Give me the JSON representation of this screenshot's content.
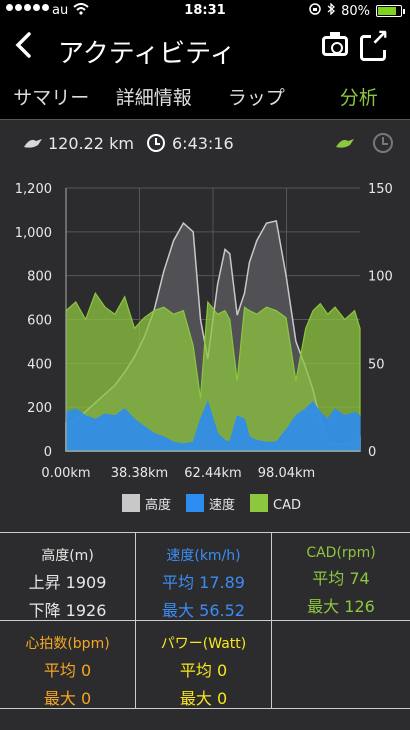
{
  "status": {
    "carrier": "au",
    "time": "18:31",
    "battery": "80%",
    "battery_level": 0.8
  },
  "header": {
    "title": "アクティビティ",
    "back_icon": "back-arrow-icon",
    "camera_icon": "camera-icon",
    "share_icon": "share-icon"
  },
  "tabs": [
    {
      "label": "サマリー",
      "active": false
    },
    {
      "label": "詳細情報",
      "active": false
    },
    {
      "label": "ラップ",
      "active": false
    },
    {
      "label": "分析",
      "active": true
    }
  ],
  "summary": {
    "distance": "120.22 km",
    "duration": "6:43:16"
  },
  "chart_data": {
    "type": "line",
    "x_ticks": [
      "0.00km",
      "38.38km",
      "62.44km",
      "98.04km"
    ],
    "y_left_ticks": [
      "0",
      "200",
      "400",
      "600",
      "800",
      "1,000",
      "1,200"
    ],
    "y_left_lim": [
      0,
      1200
    ],
    "y_right_ticks": [
      "0",
      "50",
      "100",
      "150"
    ],
    "y_right_lim": [
      0,
      150
    ],
    "x_km_range": [
      0,
      120.22
    ],
    "legend": [
      {
        "label": "高度",
        "color": "#c8c8c8"
      },
      {
        "label": "速度",
        "color": "#2d8cf0"
      },
      {
        "label": "CAD",
        "color": "#8dc63f"
      }
    ],
    "series": [
      {
        "name": "高度",
        "axis": "left",
        "x": [
          0,
          4,
          8,
          12,
          16,
          20,
          24,
          28,
          32,
          36,
          40,
          44,
          48,
          52,
          55,
          58,
          62,
          65,
          67,
          70,
          73,
          75,
          78,
          82,
          86,
          90,
          94,
          98,
          101,
          104,
          107,
          110,
          114,
          118,
          120.22
        ],
        "values": [
          130,
          140,
          180,
          220,
          260,
          300,
          360,
          430,
          520,
          640,
          820,
          960,
          1040,
          1000,
          600,
          420,
          760,
          920,
          900,
          620,
          720,
          860,
          960,
          1040,
          1050,
          800,
          500,
          380,
          280,
          140,
          40,
          30,
          30,
          40,
          60
        ]
      },
      {
        "name": "速度",
        "axis": "right",
        "x": [
          0,
          4,
          8,
          12,
          16,
          20,
          24,
          28,
          32,
          36,
          40,
          44,
          48,
          52,
          55,
          58,
          62,
          65,
          67,
          70,
          73,
          75,
          78,
          82,
          86,
          90,
          94,
          98,
          101,
          104,
          107,
          110,
          114,
          118,
          120.22
        ],
        "values": [
          22,
          24,
          20,
          18,
          21,
          20,
          24,
          18,
          14,
          10,
          8,
          5,
          4,
          5,
          18,
          28,
          10,
          6,
          5,
          20,
          18,
          8,
          6,
          5,
          5,
          12,
          20,
          24,
          28,
          22,
          18,
          24,
          20,
          22,
          20
        ]
      },
      {
        "name": "CAD",
        "axis": "right",
        "x": [
          0,
          4,
          8,
          12,
          16,
          20,
          24,
          28,
          32,
          36,
          40,
          44,
          48,
          52,
          55,
          58,
          62,
          65,
          67,
          70,
          73,
          75,
          78,
          82,
          86,
          90,
          94,
          98,
          101,
          104,
          107,
          110,
          114,
          118,
          120.22
        ],
        "values": [
          80,
          85,
          75,
          90,
          82,
          78,
          88,
          70,
          76,
          80,
          82,
          78,
          80,
          60,
          30,
          85,
          78,
          80,
          75,
          40,
          82,
          80,
          78,
          82,
          80,
          76,
          40,
          70,
          80,
          84,
          78,
          82,
          75,
          80,
          70
        ]
      }
    ]
  },
  "stats": {
    "altitude": {
      "title": "高度(m)",
      "line1": "上昇 1909",
      "line2": "下降 1926"
    },
    "speed": {
      "title": "速度(km/h)",
      "line1": "平均 17.89",
      "line2": "最大 56.52"
    },
    "cadence": {
      "title": "CAD(rpm)",
      "line1": "平均 74",
      "line2": "最大 126"
    },
    "heart": {
      "title": "心拍数(bpm)",
      "line1": "平均 0",
      "line2": "最大 0"
    },
    "power": {
      "title": "パワー(Watt)",
      "line1": "平均 0",
      "line2": "最大 0"
    }
  }
}
